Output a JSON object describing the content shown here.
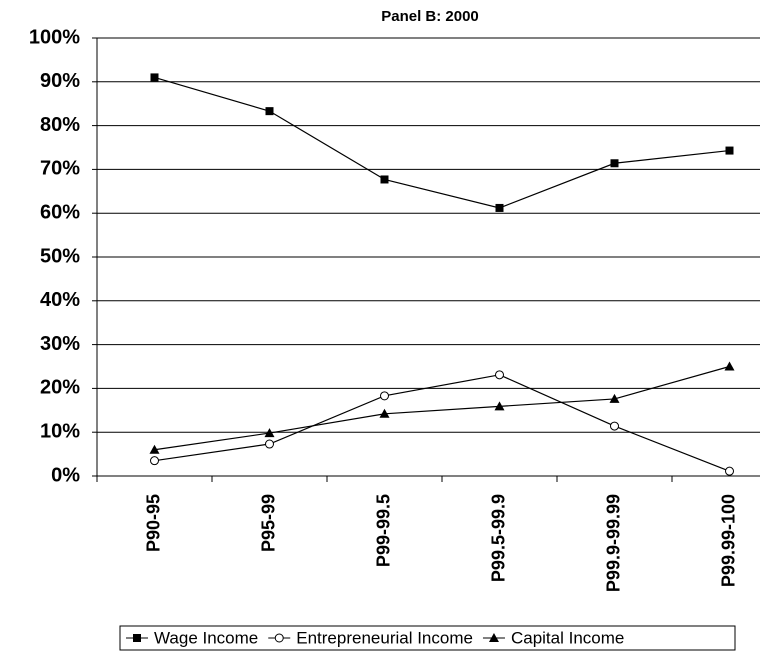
{
  "chart_data": {
    "type": "line",
    "title": "Panel B: 2000",
    "categories": [
      "P90-95",
      "P95-99",
      "P99-99.5",
      "P99.5-99.9",
      "P99.9-99.99",
      "P99.99-100"
    ],
    "series": [
      {
        "name": "Wage Income",
        "color": "#000000",
        "marker": "square",
        "values": [
          91,
          83.3,
          67.7,
          61.2,
          71.4,
          74.3
        ]
      },
      {
        "name": "Entrepreneurial Income",
        "color": "#000000",
        "marker": "circle",
        "values": [
          3.5,
          7.3,
          18.3,
          23.1,
          11.4,
          1.1
        ]
      },
      {
        "name": "Capital Income",
        "color": "#000000",
        "marker": "triangle",
        "values": [
          6,
          9.8,
          14.2,
          15.9,
          17.6,
          25
        ]
      }
    ],
    "ylim": [
      0,
      100
    ],
    "yticks": [
      {
        "value": 0,
        "label": "0%"
      },
      {
        "value": 10,
        "label": "10%"
      },
      {
        "value": 20,
        "label": "20%"
      },
      {
        "value": 30,
        "label": "30%"
      },
      {
        "value": 40,
        "label": "40%"
      },
      {
        "value": 50,
        "label": "50%"
      },
      {
        "value": 60,
        "label": "60%"
      },
      {
        "value": 70,
        "label": "70%"
      },
      {
        "value": 80,
        "label": "80%"
      },
      {
        "value": 90,
        "label": "90%"
      },
      {
        "value": 100,
        "label": "100%"
      }
    ],
    "grid": true,
    "legend": "bottom"
  }
}
